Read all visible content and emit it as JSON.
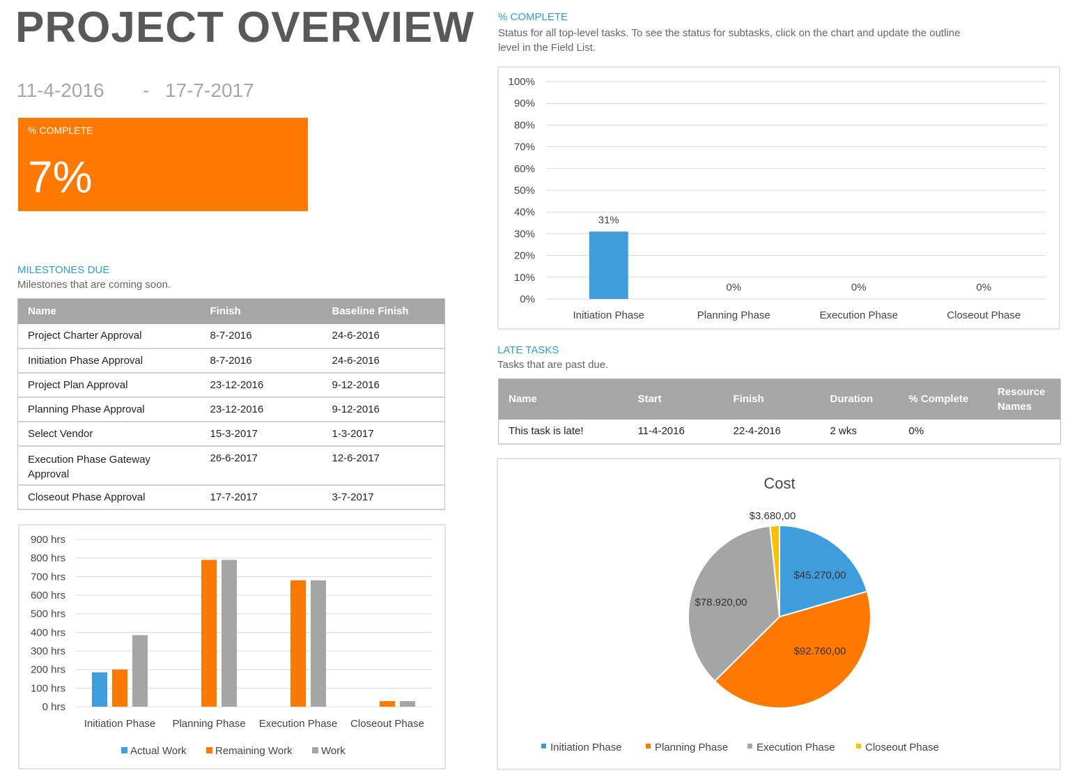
{
  "header": {
    "title": "PROJECT OVERVIEW",
    "start_date": "11-4-2016",
    "separator": "-",
    "finish_date": "17-7-2017"
  },
  "kpi": {
    "label": "% COMPLETE",
    "value": "7%",
    "color": "#ff7800"
  },
  "milestones": {
    "title": "MILESTONES DUE",
    "subtitle": "Milestones that are coming soon.",
    "columns": [
      "Name",
      "Finish",
      "Baseline Finish"
    ],
    "rows": [
      [
        "Project Charter Approval",
        "8-7-2016",
        "24-6-2016"
      ],
      [
        "Initiation Phase Approval",
        "8-7-2016",
        "24-6-2016"
      ],
      [
        "Project Plan Approval",
        "23-12-2016",
        "9-12-2016"
      ],
      [
        "Planning Phase Approval",
        "23-12-2016",
        "9-12-2016"
      ],
      [
        "Select Vendor",
        "15-3-2017",
        "1-3-2017"
      ],
      [
        "Execution Phase Gateway Approval",
        "26-6-2017",
        "12-6-2017"
      ],
      [
        "Closeout Phase Approval",
        "17-7-2017",
        "3-7-2017"
      ]
    ]
  },
  "complete_section": {
    "title": "% COMPLETE",
    "subtitle": "Status for all top-level tasks. To see the status for subtasks, click on the chart and update the outline level in the Field List."
  },
  "late_tasks": {
    "title": "LATE TASKS",
    "subtitle": "Tasks that are past due.",
    "columns": [
      "Name",
      "Start",
      "Finish",
      "Duration",
      "% Complete",
      "Resource Names"
    ],
    "rows": [
      [
        "This task is late!",
        "11-4-2016",
        "22-4-2016",
        "2 wks",
        "0%",
        ""
      ]
    ]
  },
  "chart_data": [
    {
      "type": "bar",
      "categories": [
        "Initiation Phase",
        "Planning Phase",
        "Execution Phase",
        "Closeout Phase"
      ],
      "values": [
        31,
        0,
        0,
        0
      ],
      "data_labels": [
        "31%",
        "0%",
        "0%",
        "0%"
      ],
      "ylim": [
        0,
        100
      ],
      "yticks": [
        "0%",
        "10%",
        "20%",
        "30%",
        "40%",
        "50%",
        "60%",
        "70%",
        "80%",
        "90%",
        "100%"
      ],
      "grid": true,
      "color": "#3f9ddc"
    },
    {
      "type": "bar",
      "categories": [
        "Initiation Phase",
        "Planning Phase",
        "Execution Phase",
        "Closeout Phase"
      ],
      "series": [
        {
          "name": "Actual Work",
          "values": [
            185,
            0,
            0,
            0
          ],
          "color": "#3f9ddc"
        },
        {
          "name": "Remaining Work",
          "values": [
            200,
            790,
            680,
            30
          ],
          "color": "#ff7800"
        },
        {
          "name": "Work",
          "values": [
            385,
            790,
            680,
            30
          ],
          "color": "#a5a5a5"
        }
      ],
      "ylim": [
        0,
        900
      ],
      "yticks": [
        "0 hrs",
        "100 hrs",
        "200 hrs",
        "300 hrs",
        "400 hrs",
        "500 hrs",
        "600 hrs",
        "700 hrs",
        "800 hrs",
        "900 hrs"
      ],
      "grid": true,
      "legend": "bottom"
    },
    {
      "type": "pie",
      "title": "Cost",
      "categories": [
        "Initiation Phase",
        "Planning Phase",
        "Execution Phase",
        "Closeout Phase"
      ],
      "values": [
        45270,
        92760,
        78920,
        3680
      ],
      "data_labels": [
        "$45.270,00",
        "$92.760,00",
        "$78.920,00",
        "$3.680,00"
      ],
      "colors": [
        "#3f9ddc",
        "#ff7800",
        "#a5a5a5",
        "#ffc000"
      ],
      "legend": "bottom"
    }
  ]
}
